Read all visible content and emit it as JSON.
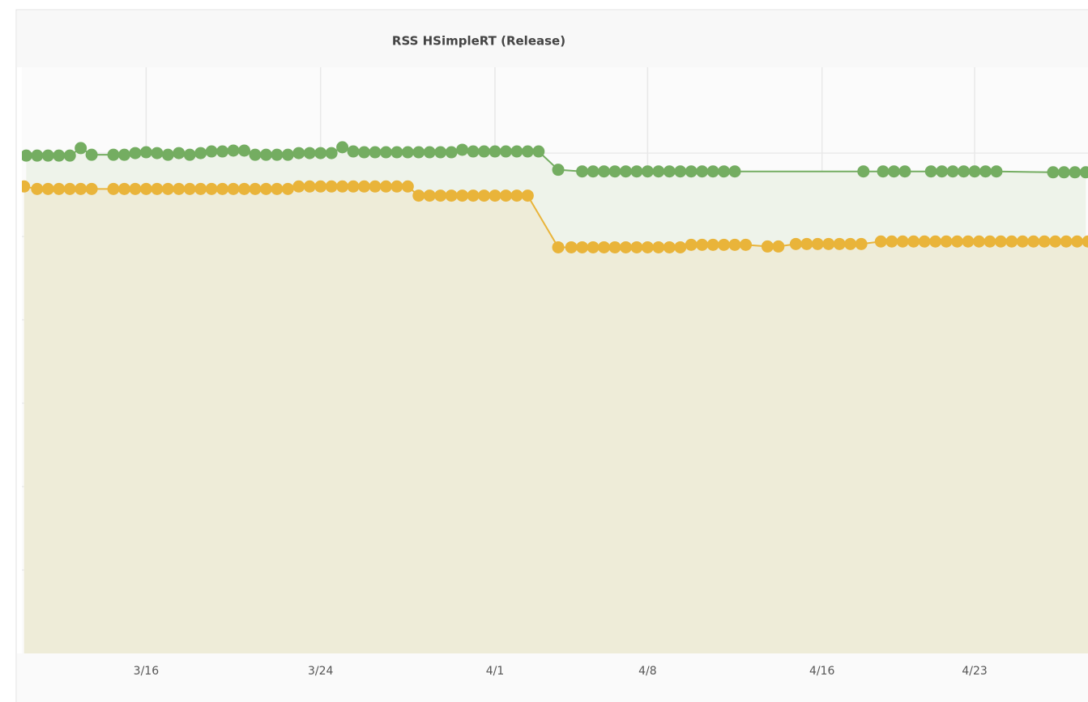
{
  "chart_data": {
    "type": "line",
    "title": "RSS HSimpleRT (Release)",
    "xlim": [
      10.3,
      59.2
    ],
    "xticks": [
      {
        "value": 16,
        "label": "3/16"
      },
      {
        "value": 24,
        "label": "3/24"
      },
      {
        "value": 32,
        "label": "4/1"
      },
      {
        "value": 39,
        "label": "4/8"
      },
      {
        "value": 47,
        "label": "4/16"
      },
      {
        "value": 54,
        "label": "4/23"
      }
    ],
    "ylim": [
      0,
      7.03
    ],
    "yticks": [
      1,
      2,
      3,
      4,
      5,
      6
    ],
    "grid": true,
    "series": [
      {
        "color": "#74ad61",
        "area_color": "#eef3ea",
        "x": [
          10.5,
          11,
          11.5,
          12,
          12.5,
          13,
          13.5,
          14.5,
          15,
          15.5,
          16,
          16.5,
          17,
          17.5,
          18,
          18.5,
          19,
          19.5,
          20,
          20.5,
          21,
          21.5,
          22,
          22.5,
          23,
          23.5,
          24,
          24.5,
          25,
          25.5,
          26,
          26.5,
          27,
          27.5,
          28,
          28.5,
          29,
          29.5,
          30,
          30.5,
          31,
          31.5,
          32,
          32.5,
          33,
          33.5,
          34,
          34.9,
          36,
          36.5,
          37,
          37.5,
          38,
          38.5,
          39,
          39.5,
          40,
          40.5,
          41,
          41.5,
          42,
          42.5,
          43,
          48.9,
          49.8,
          50.3,
          50.8,
          52,
          52.5,
          53,
          53.5,
          54,
          54.5,
          55,
          57.6,
          58.1,
          58.6,
          59.1
        ],
        "values": [
          5.97,
          5.97,
          5.97,
          5.97,
          5.97,
          6.06,
          5.98,
          5.98,
          5.98,
          6.0,
          6.01,
          6.0,
          5.98,
          6.0,
          5.98,
          6.0,
          6.02,
          6.02,
          6.03,
          6.03,
          5.98,
          5.98,
          5.98,
          5.98,
          6.0,
          6.0,
          6.0,
          6.0,
          6.07,
          6.02,
          6.01,
          6.01,
          6.01,
          6.01,
          6.01,
          6.01,
          6.01,
          6.01,
          6.01,
          6.04,
          6.02,
          6.02,
          6.02,
          6.02,
          6.02,
          6.02,
          6.02,
          5.8,
          5.78,
          5.78,
          5.78,
          5.78,
          5.78,
          5.78,
          5.78,
          5.78,
          5.78,
          5.78,
          5.78,
          5.78,
          5.78,
          5.78,
          5.78,
          5.78,
          5.78,
          5.78,
          5.78,
          5.78,
          5.78,
          5.78,
          5.78,
          5.78,
          5.78,
          5.78,
          5.77,
          5.77,
          5.77,
          5.77
        ]
      },
      {
        "color": "#e9b43a",
        "area_color": "#eeecd8",
        "x": [
          10.4,
          11,
          11.5,
          12,
          12.5,
          13,
          13.5,
          14.5,
          15,
          15.5,
          16,
          16.5,
          17,
          17.5,
          18,
          18.5,
          19,
          19.5,
          20,
          20.5,
          21,
          21.5,
          22,
          22.5,
          23,
          23.5,
          24,
          24.5,
          25,
          25.5,
          26,
          26.5,
          27,
          27.5,
          28,
          28.5,
          29,
          29.5,
          30,
          30.5,
          31,
          31.5,
          32,
          32.5,
          33,
          33.5,
          34.9,
          35.5,
          36,
          36.5,
          37,
          37.5,
          38,
          38.5,
          39,
          39.5,
          40,
          40.5,
          41,
          41.5,
          42,
          42.5,
          43,
          43.5,
          44.5,
          45,
          45.8,
          46.3,
          46.8,
          47.3,
          47.8,
          48.3,
          48.8,
          49.7,
          50.2,
          50.7,
          51.2,
          51.7,
          52.2,
          52.7,
          53.2,
          53.7,
          54.2,
          54.7,
          55.2,
          55.7,
          56.2,
          56.7,
          57.2,
          57.7,
          58.2,
          58.7,
          59.2
        ],
        "values": [
          5.6,
          5.57,
          5.57,
          5.57,
          5.57,
          5.57,
          5.57,
          5.57,
          5.57,
          5.57,
          5.57,
          5.57,
          5.57,
          5.57,
          5.57,
          5.57,
          5.57,
          5.57,
          5.57,
          5.57,
          5.57,
          5.57,
          5.57,
          5.57,
          5.6,
          5.6,
          5.6,
          5.6,
          5.6,
          5.6,
          5.6,
          5.6,
          5.6,
          5.6,
          5.6,
          5.49,
          5.49,
          5.49,
          5.49,
          5.49,
          5.49,
          5.49,
          5.49,
          5.49,
          5.49,
          5.49,
          4.87,
          4.87,
          4.87,
          4.87,
          4.87,
          4.87,
          4.87,
          4.87,
          4.87,
          4.87,
          4.87,
          4.87,
          4.9,
          4.9,
          4.9,
          4.9,
          4.9,
          4.9,
          4.88,
          4.88,
          4.91,
          4.91,
          4.91,
          4.91,
          4.91,
          4.91,
          4.91,
          4.94,
          4.94,
          4.94,
          4.94,
          4.94,
          4.94,
          4.94,
          4.94,
          4.94,
          4.94,
          4.94,
          4.94,
          4.94,
          4.94,
          4.94,
          4.94,
          4.94,
          4.94,
          4.94,
          4.94
        ]
      }
    ]
  }
}
